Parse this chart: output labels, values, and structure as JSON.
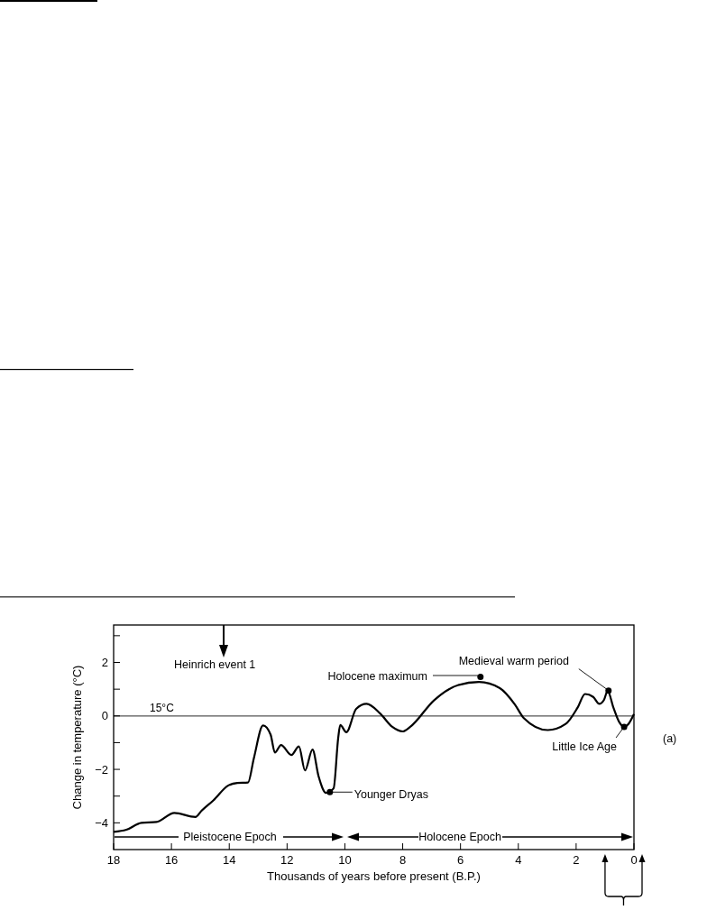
{
  "chart_data": {
    "type": "line",
    "xlabel": "Thousands of years before present (B.P.)",
    "ylabel": "Change in temperature (°C)",
    "xlim": [
      18,
      0
    ],
    "xticks": [
      18,
      16,
      14,
      12,
      10,
      8,
      6,
      4,
      2,
      0
    ],
    "ylim": [
      -5,
      3.4
    ],
    "yticks": [
      -4,
      {
        "value": -3,
        "label": null
      },
      -2,
      {
        "value": -1,
        "label": null
      },
      0,
      {
        "value": 1,
        "label": null
      },
      2,
      {
        "value": 3,
        "label": null
      }
    ],
    "series": [
      {
        "color": "#000000",
        "marker": "none",
        "x": [
          18,
          17.56,
          17.04,
          16.52,
          15.9,
          15.17,
          14.96,
          14.55,
          14.03,
          13.72,
          13.35,
          13.15,
          12.83,
          12.57,
          12.42,
          12.21,
          11.85,
          11.59,
          11.38,
          11.12,
          10.91,
          10.65,
          10.39,
          10.23,
          10.16,
          9.95,
          9.61,
          9.25,
          8.78,
          8.36,
          8,
          7.74,
          6.91,
          6.09,
          5.36,
          4.64,
          4.12,
          3.81,
          2.98,
          2.36,
          1.95,
          1.69,
          1.41,
          1.2,
          1.04,
          0.91,
          0.71,
          0.5,
          0.34,
          0.19,
          0
        ],
        "values": [
          -4.34,
          -4.26,
          -4,
          -3.97,
          -3.63,
          -3.78,
          -3.55,
          -3.16,
          -2.6,
          -2.51,
          -2.49,
          -1.59,
          -0.36,
          -0.7,
          -1.37,
          -1.09,
          -1.46,
          -1.14,
          -2.04,
          -1.26,
          -2.26,
          -2.88,
          -2.71,
          -0.81,
          -0.34,
          -0.61,
          0.26,
          0.45,
          0.09,
          -0.41,
          -0.58,
          -0.41,
          0.59,
          1.15,
          1.27,
          1.04,
          0.43,
          -0.08,
          -0.53,
          -0.3,
          0.31,
          0.82,
          0.71,
          0.45,
          0.59,
          0.93,
          0.31,
          -0.25,
          -0.41,
          -0.3,
          0.07
        ]
      },
      {
        "type": "scatter",
        "color": "#000000",
        "marker": "circle",
        "x": [
          10.52,
          5.31,
          0.88,
          0.34
        ],
        "values": [
          -2.85,
          1.46,
          0.95,
          -0.41
        ]
      }
    ],
    "ref_lines": [
      {
        "axis": "y",
        "value": 0,
        "label": "15°C",
        "color": "#555555"
      }
    ],
    "annotations": [
      "Heinrich event 1",
      "Holocene maximum",
      {
        "text": "Medieval warm period",
        "x": 0.88,
        "y": 0.95
      },
      {
        "text": "Little Ice Age",
        "x": 0.34,
        "y": -0.41
      },
      {
        "text": "Younger Dryas",
        "x": 10.52,
        "y": -2.85
      },
      "(a)",
      "Pleistocene Epoch",
      "Holocene Epoch"
    ]
  }
}
